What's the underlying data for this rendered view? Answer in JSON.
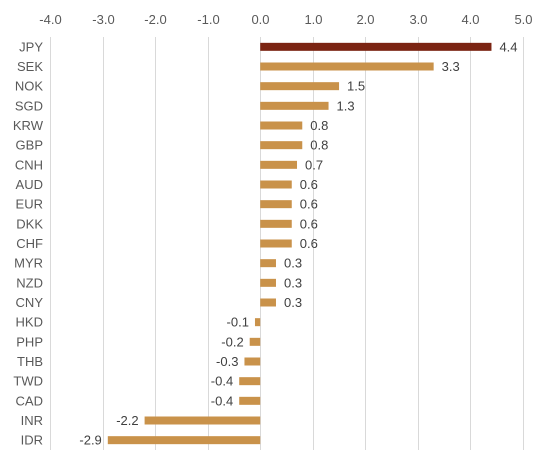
{
  "chart_data": {
    "type": "bar",
    "orientation": "horizontal",
    "categories": [
      "JPY",
      "SEK",
      "NOK",
      "SGD",
      "KRW",
      "GBP",
      "CNH",
      "AUD",
      "EUR",
      "DKK",
      "CHF",
      "MYR",
      "NZD",
      "CNY",
      "HKD",
      "PHP",
      "THB",
      "TWD",
      "CAD",
      "INR",
      "IDR"
    ],
    "values": [
      4.4,
      3.3,
      1.5,
      1.3,
      0.8,
      0.8,
      0.7,
      0.6,
      0.6,
      0.6,
      0.6,
      0.3,
      0.3,
      0.3,
      -0.1,
      -0.2,
      -0.3,
      -0.4,
      -0.4,
      -2.2,
      -2.9
    ],
    "data_labels": [
      "4.4",
      "3.3",
      "1.5",
      "1.3",
      "0.8",
      "0.8",
      "0.7",
      "0.6",
      "0.6",
      "0.6",
      "0.6",
      "0.3",
      "0.3",
      "0.3",
      "-0.1",
      "-0.2",
      "-0.3",
      "-0.4",
      "-0.4",
      "-2.2",
      "-2.9"
    ],
    "x_ticks": [
      "-4.0",
      "-3.0",
      "-2.0",
      "-1.0",
      "0.0",
      "1.0",
      "2.0",
      "3.0",
      "4.0",
      "5.0"
    ],
    "xlim": [
      -4.0,
      5.0
    ],
    "axis_position": "top",
    "grid": true,
    "title": "",
    "xlabel": "",
    "ylabel": "",
    "colors": {
      "highlight": "#7b2412",
      "default": "#c9924a",
      "grid": "#d9d9d9"
    },
    "highlight_category": "JPY"
  }
}
